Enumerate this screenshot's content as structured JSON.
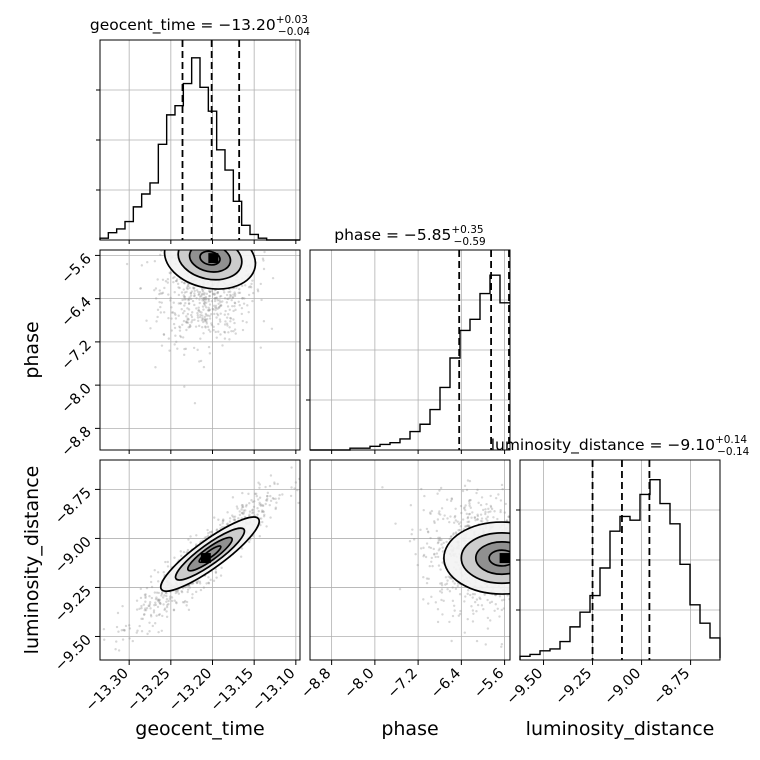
{
  "chart_data": {
    "type": "corner",
    "parameters": [
      {
        "name": "geocent_time",
        "label": "geocent_time",
        "median": -13.2,
        "plus": 0.03,
        "minus": 0.04,
        "title_main": "geocent_time = −13.20",
        "title_plus": "+0.03",
        "title_minus": "−0.04",
        "range": [
          -13.335,
          -13.095
        ],
        "ticks": [
          -13.3,
          -13.25,
          -13.2,
          -13.15,
          -13.1
        ],
        "tick_labels": [
          "−13.30",
          "−13.25",
          "−13.20",
          "−13.15",
          "−13.10"
        ],
        "quantiles": [
          -13.236,
          -13.201,
          -13.168
        ],
        "hist": {
          "edges_start": -13.335,
          "bin_width": 0.01,
          "counts": [
            0.01,
            0.04,
            0.06,
            0.1,
            0.18,
            0.25,
            0.31,
            0.52,
            0.68,
            0.73,
            0.85,
            0.99,
            0.83,
            0.7,
            0.49,
            0.38,
            0.21,
            0.08,
            0.03,
            0.01,
            0,
            0,
            0,
            0
          ]
        }
      },
      {
        "name": "phase",
        "label": "phase",
        "median": -5.85,
        "plus": 0.35,
        "minus": 0.59,
        "title_main": "phase = −5.85",
        "title_plus": "+0.35",
        "title_minus": "−0.59",
        "range": [
          -9.2,
          -5.5
        ],
        "ticks": [
          -8.8,
          -8.0,
          -7.2,
          -6.4,
          -5.6
        ],
        "tick_labels": [
          "−8.8",
          "−8.0",
          "−7.2",
          "−6.4",
          "−5.6"
        ],
        "quantiles": [
          -6.44,
          -5.85,
          -5.5
        ],
        "hist": {
          "edges_start": -9.2,
          "bin_width": 0.185,
          "counts": [
            0,
            0,
            0,
            0,
            0.01,
            0.01,
            0.02,
            0.03,
            0.04,
            0.06,
            0.1,
            0.14,
            0.22,
            0.34,
            0.5,
            0.65,
            0.71,
            0.85,
            0.95,
            0.8
          ]
        }
      },
      {
        "name": "luminosity_distance",
        "label": "luminosity_distance",
        "median": -9.1,
        "plus": 0.14,
        "minus": 0.14,
        "title_main": "luminosity_distance = −9.10",
        "title_plus": "+0.14",
        "title_minus": "−0.14",
        "range": [
          -9.62,
          -8.6
        ],
        "ticks": [
          -9.5,
          -9.25,
          -9.0,
          -8.75
        ],
        "tick_labels": [
          "−9.50",
          "−9.25",
          "−9.00",
          "−8.75"
        ],
        "quantiles": [
          -9.25,
          -9.1,
          -8.96
        ],
        "hist": {
          "edges_start": -9.62,
          "bin_width": 0.051,
          "counts": [
            0.02,
            0.03,
            0.05,
            0.06,
            0.1,
            0.18,
            0.26,
            0.35,
            0.5,
            0.7,
            0.78,
            0.76,
            0.9,
            0.98,
            0.85,
            0.74,
            0.52,
            0.3,
            0.2,
            0.12,
            0.06,
            0.03,
            0.02,
            0.01
          ]
        }
      }
    ],
    "pairs": [
      {
        "x": "geocent_time",
        "y": "phase",
        "contour_center": [
          -13.203,
          -5.65
        ],
        "marker": [
          -13.199,
          -5.65
        ],
        "scatter_center": [
          -13.205,
          -6.1
        ],
        "scatter_spread": [
          0.028,
          0.55
        ]
      },
      {
        "x": "geocent_time",
        "y": "luminosity_distance",
        "contour_center": [
          -13.203,
          -9.08
        ],
        "marker": [
          -13.208,
          -9.1
        ],
        "scatter_center": [
          -13.21,
          -9.1
        ],
        "scatter_spread": [
          0.04,
          0.16
        ]
      },
      {
        "x": "phase",
        "y": "luminosity_distance",
        "contour_center": [
          -5.65,
          -9.1
        ],
        "marker": [
          -5.6,
          -9.1
        ],
        "scatter_center": [
          -6.0,
          -9.08
        ],
        "scatter_spread": [
          0.55,
          0.15
        ]
      }
    ],
    "grid": true,
    "colors": {
      "hist": "#000000",
      "scatter": "#8c8c8c",
      "contour": "#000000"
    }
  }
}
